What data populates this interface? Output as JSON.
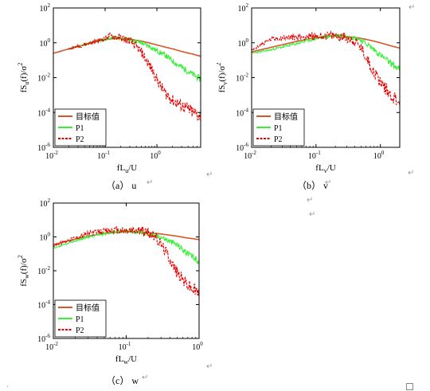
{
  "colors": {
    "target": "#d4582a",
    "p1": "#35f035",
    "p2": "#e60000"
  },
  "chart_data": [
    {
      "id": "u",
      "type": "line",
      "log_x": true,
      "log_y": true,
      "xlim": [
        0.01,
        7
      ],
      "ylim": [
        1e-06,
        100
      ],
      "x_ticks": [
        {
          "v": 0.01,
          "base": "10",
          "exp": "-2"
        },
        {
          "v": 0.1,
          "base": "10",
          "exp": "-1"
        },
        {
          "v": 1,
          "base": "10",
          "exp": "0"
        }
      ],
      "y_ticks": [
        {
          "v": 1e-06,
          "base": "10",
          "exp": "-6"
        },
        {
          "v": 0.0001,
          "base": "10",
          "exp": "-4"
        },
        {
          "v": 0.01,
          "base": "10",
          "exp": "-2"
        },
        {
          "v": 1,
          "base": "10",
          "exp": "0"
        },
        {
          "v": 100,
          "base": "10",
          "exp": "2"
        }
      ],
      "xlabel": {
        "main": "fL",
        "sub": "u",
        "tail": "/U"
      },
      "ylabel": {
        "pre": "fS",
        "sub": "u",
        "mid": "(f)/σ",
        "sup": "2"
      },
      "caption": "（a） u",
      "legend": [
        "目标值",
        "P1",
        "P2"
      ],
      "series": [
        {
          "name": "目标值",
          "role": "target",
          "x": [
            0.01,
            0.02,
            0.05,
            0.1,
            0.15,
            0.2,
            0.3,
            0.5,
            0.7,
            1,
            1.5,
            2,
            3,
            5,
            7
          ],
          "y": [
            0.25,
            0.45,
            0.95,
            1.55,
            1.75,
            1.75,
            1.6,
            1.25,
            1.0,
            0.75,
            0.55,
            0.45,
            0.32,
            0.22,
            0.17
          ]
        },
        {
          "name": "P1",
          "role": "p1",
          "x": [
            0.02,
            0.05,
            0.1,
            0.15,
            0.2,
            0.3,
            0.5,
            0.7,
            1,
            1.5,
            2,
            3,
            5,
            7
          ],
          "y": [
            0.45,
            0.95,
            1.6,
            1.9,
            1.8,
            1.5,
            1.0,
            0.65,
            0.35,
            0.18,
            0.09,
            0.04,
            0.015,
            0.008
          ]
        },
        {
          "name": "P2",
          "role": "p2",
          "x": [
            0.02,
            0.05,
            0.1,
            0.12,
            0.15,
            0.2,
            0.3,
            0.4,
            0.5,
            0.6,
            0.8,
            1,
            1.2,
            1.5,
            2,
            3,
            4,
            5,
            7
          ],
          "y": [
            0.45,
            0.95,
            1.7,
            2.6,
            2.2,
            1.9,
            1.3,
            0.6,
            0.3,
            0.12,
            0.03,
            0.008,
            0.003,
            0.0012,
            0.0005,
            0.00025,
            0.00015,
            0.0001,
            6e-05
          ]
        }
      ]
    },
    {
      "id": "v",
      "type": "line",
      "log_x": true,
      "log_y": true,
      "xlim": [
        0.01,
        2
      ],
      "ylim": [
        1e-06,
        100
      ],
      "x_ticks": [
        {
          "v": 0.01,
          "base": "10",
          "exp": "-2"
        },
        {
          "v": 0.1,
          "base": "10",
          "exp": "-1"
        },
        {
          "v": 1,
          "base": "10",
          "exp": "0"
        }
      ],
      "y_ticks": [
        {
          "v": 1e-06,
          "base": "10",
          "exp": "-6"
        },
        {
          "v": 0.0001,
          "base": "10",
          "exp": "-4"
        },
        {
          "v": 0.01,
          "base": "10",
          "exp": "-2"
        },
        {
          "v": 1,
          "base": "10",
          "exp": "0"
        },
        {
          "v": 100,
          "base": "10",
          "exp": "2"
        }
      ],
      "xlabel": {
        "main": "fL",
        "sub": "v",
        "tail": "/U"
      },
      "ylabel": {
        "pre": "fS",
        "sub": "v",
        "mid": "(f)/σ",
        "sup": "2"
      },
      "caption": "（b） v",
      "legend": [
        "目标值",
        "P1",
        "P2"
      ],
      "series": [
        {
          "name": "目标值",
          "role": "target",
          "x": [
            0.01,
            0.02,
            0.05,
            0.1,
            0.15,
            0.2,
            0.3,
            0.5,
            0.7,
            1,
            1.5,
            2
          ],
          "y": [
            0.3,
            0.55,
            1.2,
            2.0,
            2.4,
            2.5,
            2.3,
            1.8,
            1.4,
            1.0,
            0.65,
            0.5
          ]
        },
        {
          "name": "P1",
          "role": "p1",
          "x": [
            0.01,
            0.02,
            0.05,
            0.1,
            0.15,
            0.2,
            0.3,
            0.5,
            0.7,
            1,
            1.5,
            2
          ],
          "y": [
            0.25,
            0.4,
            0.9,
            1.8,
            2.3,
            2.6,
            2.5,
            1.5,
            0.6,
            0.2,
            0.06,
            0.03
          ]
        },
        {
          "name": "P2",
          "role": "p2",
          "x": [
            0.01,
            0.015,
            0.02,
            0.03,
            0.05,
            0.1,
            0.15,
            0.2,
            0.3,
            0.4,
            0.5,
            0.6,
            0.7,
            0.8,
            1,
            1.2,
            1.5,
            2
          ],
          "y": [
            0.35,
            0.9,
            1.6,
            2.0,
            2.1,
            2.4,
            2.6,
            2.5,
            2.0,
            1.2,
            0.5,
            0.15,
            0.05,
            0.02,
            0.006,
            0.0025,
            0.0009,
            0.0004
          ]
        }
      ]
    },
    {
      "id": "w",
      "type": "line",
      "log_x": true,
      "log_y": true,
      "xlim": [
        0.01,
        1
      ],
      "ylim": [
        1e-06,
        100
      ],
      "x_ticks": [
        {
          "v": 0.01,
          "base": "10",
          "exp": "-2"
        },
        {
          "v": 0.1,
          "base": "10",
          "exp": "-1"
        },
        {
          "v": 1,
          "base": "10",
          "exp": "0"
        }
      ],
      "y_ticks": [
        {
          "v": 1e-06,
          "base": "10",
          "exp": "-6"
        },
        {
          "v": 0.0001,
          "base": "10",
          "exp": "-4"
        },
        {
          "v": 0.01,
          "base": "10",
          "exp": "-2"
        },
        {
          "v": 1,
          "base": "10",
          "exp": "0"
        },
        {
          "v": 100,
          "base": "10",
          "exp": "2"
        }
      ],
      "xlabel": {
        "main": "fL",
        "sub": "w",
        "tail": "/U"
      },
      "ylabel": {
        "pre": "fS",
        "sub": "w",
        "mid": "(f)/σ",
        "sup": "2"
      },
      "caption": "（c） w",
      "legend": [
        "目标值",
        "P1",
        "P2"
      ],
      "series": [
        {
          "name": "目标值",
          "role": "target",
          "x": [
            0.01,
            0.02,
            0.03,
            0.05,
            0.07,
            0.1,
            0.15,
            0.2,
            0.3,
            0.5,
            0.7,
            1
          ],
          "y": [
            0.35,
            0.75,
            1.1,
            1.6,
            1.9,
            2.0,
            1.95,
            1.8,
            1.5,
            1.1,
            0.85,
            0.7
          ]
        },
        {
          "name": "P1",
          "role": "p1",
          "x": [
            0.01,
            0.02,
            0.03,
            0.05,
            0.07,
            0.1,
            0.15,
            0.2,
            0.3,
            0.5,
            0.7,
            1
          ],
          "y": [
            0.2,
            0.6,
            1.0,
            1.6,
            2.0,
            2.2,
            2.0,
            1.6,
            1.0,
            0.35,
            0.1,
            0.035
          ]
        },
        {
          "name": "P2",
          "role": "p2",
          "x": [
            0.01,
            0.02,
            0.03,
            0.05,
            0.07,
            0.1,
            0.15,
            0.2,
            0.25,
            0.3,
            0.4,
            0.5,
            0.6,
            0.7,
            0.8,
            1
          ],
          "y": [
            0.3,
            0.9,
            1.6,
            2.2,
            2.4,
            2.3,
            2.4,
            1.8,
            1.0,
            0.4,
            0.05,
            0.008,
            0.003,
            0.0015,
            0.0009,
            0.0005
          ]
        }
      ]
    }
  ]
}
